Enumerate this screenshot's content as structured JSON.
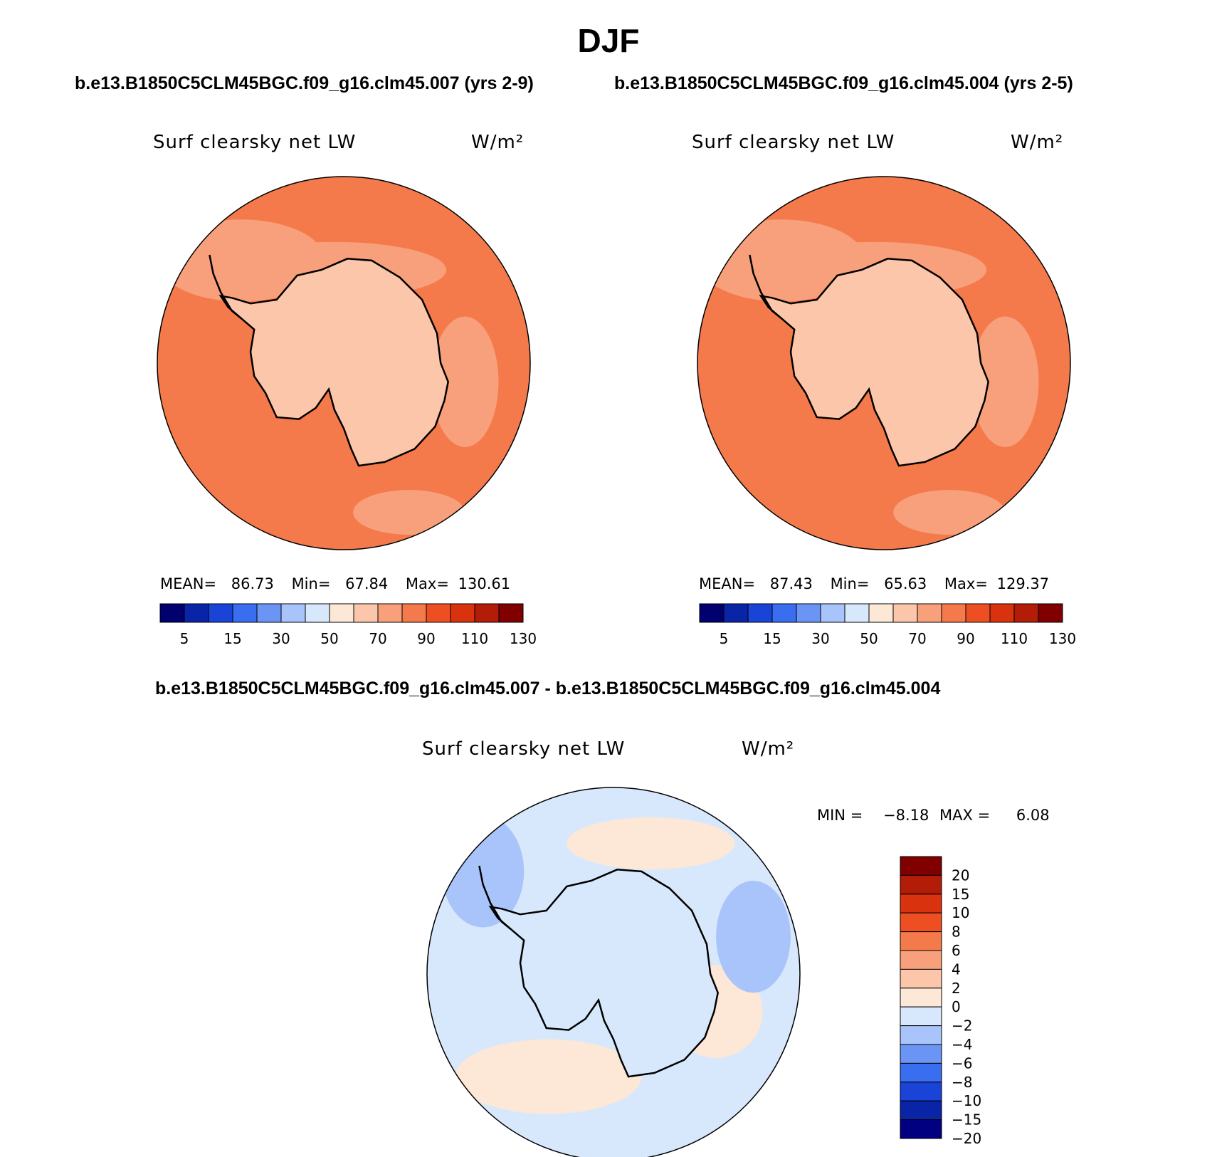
{
  "title": "DJF",
  "headers": {
    "left": "b.e13.B1850C5CLM45BGC.f09_g16.clm45.007 (yrs 2-9)",
    "right": "b.e13.B1850C5CLM45BGC.f09_g16.clm45.004 (yrs 2-5)",
    "diff": "b.e13.B1850C5CLM45BGC.f09_g16.clm45.007 - b.e13.B1850C5CLM45BGC.f09_g16.clm45.004"
  },
  "variable": "Surf clearsky net LW",
  "units": "W/m²",
  "colors": {
    "abs_scale": [
      "#00006e",
      "#0a24a8",
      "#1a44d8",
      "#3a6ef0",
      "#6b95f5",
      "#a9c4fa",
      "#d8e8fc",
      "#fde7d6",
      "#fbc6a9",
      "#f8a07b",
      "#f47a4b",
      "#ee4f22",
      "#d8330e",
      "#b31c06",
      "#800000"
    ],
    "diff_scale": [
      "#000080",
      "#0a24a8",
      "#1a44d8",
      "#3a6ef0",
      "#6b95f5",
      "#a9c4fa",
      "#d8e8fc",
      "#fde7d6",
      "#fbc6a9",
      "#f8a07b",
      "#f47a4b",
      "#ee4f22",
      "#d8330e",
      "#b31c06",
      "#800000"
    ],
    "ocean_abs": "#f47a4b",
    "shelf_abs": "#f8a07b",
    "land_abs": "#fbc6a9",
    "ocean_diff": "#d8e8fc",
    "warm_diff": "#fde7d6",
    "cool_diff": "#a9c4fa",
    "coast": "#000000"
  },
  "chart_data": [
    {
      "type": "heatmap",
      "projection": "south polar stereographic",
      "title": "b.e13.B1850C5CLM45BGC.f09_g16.clm45.007 (yrs 2-9)",
      "label": "Surf clearsky net LW",
      "units": "W/m²",
      "stats": {
        "mean_label": "MEAN=",
        "mean": "86.73",
        "min_label": "Min=",
        "min": "67.84",
        "max_label": "Max=",
        "max": "130.61"
      },
      "colorbar_ticks": [
        "5",
        "15",
        "30",
        "50",
        "70",
        "90",
        "110",
        "130"
      ]
    },
    {
      "type": "heatmap",
      "projection": "south polar stereographic",
      "title": "b.e13.B1850C5CLM45BGC.f09_g16.clm45.004 (yrs 2-5)",
      "label": "Surf clearsky net LW",
      "units": "W/m²",
      "stats": {
        "mean_label": "MEAN=",
        "mean": "87.43",
        "min_label": "Min=",
        "min": "65.63",
        "max_label": "Max=",
        "max": "129.37"
      },
      "colorbar_ticks": [
        "5",
        "15",
        "30",
        "50",
        "70",
        "90",
        "110",
        "130"
      ]
    },
    {
      "type": "heatmap",
      "projection": "south polar stereographic",
      "title": "b.e13.B1850C5CLM45BGC.f09_g16.clm45.007 - b.e13.B1850C5CLM45BGC.f09_g16.clm45.004",
      "label": "Surf clearsky net LW",
      "units": "W/m²",
      "stats": {
        "min_label": "MIN =",
        "min": "−8.18",
        "max_label": "MAX =",
        "max": "6.08"
      },
      "colorbar_ticks": [
        "20",
        "15",
        "10",
        "8",
        "6",
        "4",
        "2",
        "0",
        "−2",
        "−4",
        "−6",
        "−8",
        "−10",
        "−15",
        "−20"
      ]
    }
  ]
}
